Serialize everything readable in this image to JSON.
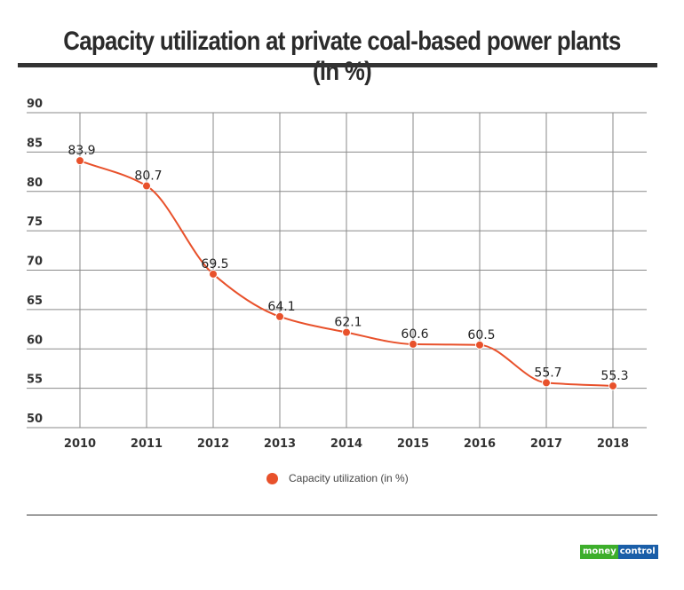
{
  "chart_data": {
    "type": "line",
    "title": "Capacity utilization at private coal-based power plants (in %)",
    "xlabel": "",
    "ylabel": "",
    "categories": [
      "2010",
      "2011",
      "2012",
      "2013",
      "2014",
      "2015",
      "2016",
      "2017",
      "2018"
    ],
    "series": [
      {
        "name": "Capacity utilization (in %)",
        "values": [
          83.9,
          80.7,
          69.5,
          64.1,
          62.1,
          60.6,
          60.5,
          55.7,
          55.3
        ],
        "color": "#e8512b"
      }
    ],
    "ylim": [
      50,
      90
    ],
    "yticks": [
      50,
      55,
      60,
      65,
      70,
      75,
      80,
      85,
      90
    ],
    "grid": true,
    "legend": "bottom-center",
    "data_labels": true
  },
  "footer": {
    "logo_part1": "money",
    "logo_part2": "control"
  }
}
